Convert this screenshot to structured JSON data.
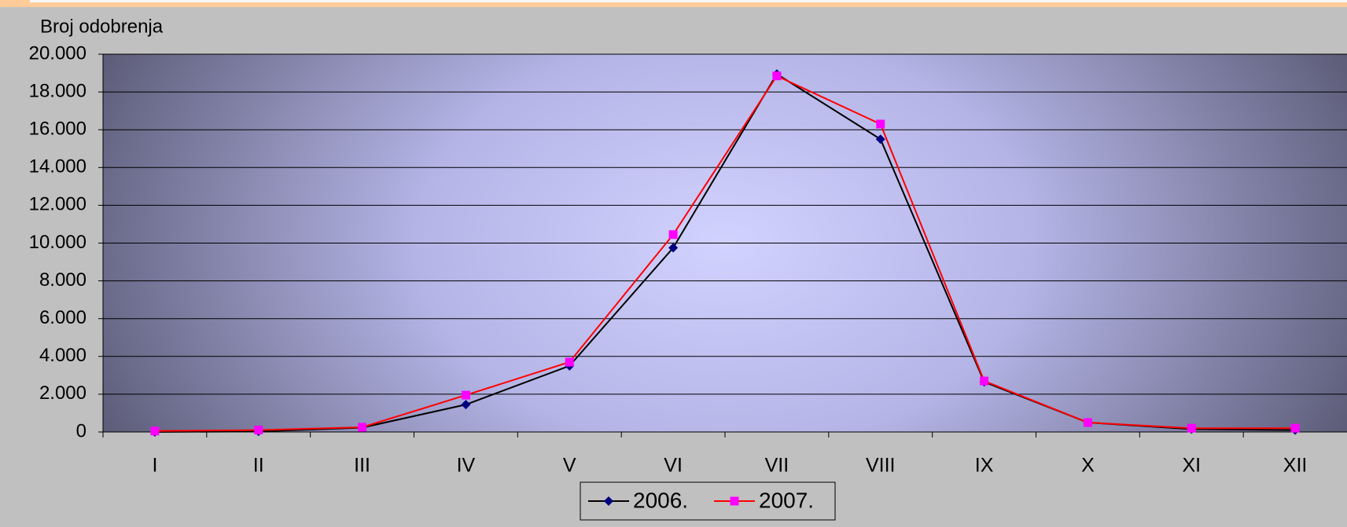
{
  "chart_data": {
    "type": "line",
    "ylabel": "Broj odobrenja",
    "categories": [
      "I",
      "II",
      "III",
      "IV",
      "V",
      "VI",
      "VII",
      "VIII",
      "IX",
      "X",
      "XI",
      "XII"
    ],
    "series": [
      {
        "name": "2006.",
        "color": "#000080",
        "line_color": "#000000",
        "marker": "diamond",
        "values": [
          0,
          30,
          230,
          1450,
          3500,
          9750,
          18950,
          15500,
          2650,
          500,
          150,
          100
        ]
      },
      {
        "name": "2007.",
        "color": "#FF00FF",
        "line_color": "#FF0000",
        "marker": "square",
        "values": [
          50,
          100,
          250,
          1950,
          3700,
          10450,
          18850,
          16300,
          2700,
          500,
          200,
          200
        ]
      }
    ],
    "ylim": [
      0,
      20000
    ],
    "yticks": [
      0,
      {
        "value": 2000,
        "label": "2.000"
      },
      {
        "value": 4000,
        "label": "4.000"
      },
      {
        "value": 6000,
        "label": "6.000"
      },
      {
        "value": 8000,
        "label": "8.000"
      },
      {
        "value": 10000,
        "label": "10.000"
      },
      {
        "value": 12000,
        "label": "12.000"
      },
      {
        "value": 14000,
        "label": "14.000"
      },
      {
        "value": 16000,
        "label": "16.000"
      },
      {
        "value": 18000,
        "label": "18.000"
      },
      {
        "value": 20000,
        "label": "20.000"
      }
    ],
    "grid": true,
    "legend": "bottom"
  }
}
